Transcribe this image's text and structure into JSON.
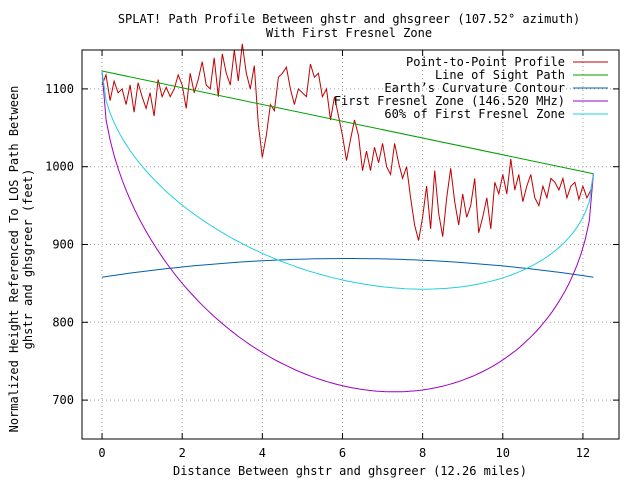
{
  "chart_data": {
    "type": "line",
    "title": "SPLAT! Path Profile Between ghstr and ghsgreer (107.52° azimuth)",
    "subtitle": "With First Fresnel Zone",
    "xlabel": "Distance Between ghstr and ghsgreer (12.26 miles)",
    "ylabel_line1": "Normalized Height Referenced To LOS Path Between",
    "ylabel_line2": "ghstr and ghsgreer (feet)",
    "xlim": [
      -0.5,
      12.9
    ],
    "ylim": [
      650,
      1150
    ],
    "x_ticks": [
      0,
      2,
      4,
      6,
      8,
      10,
      12
    ],
    "y_ticks": [
      700,
      800,
      900,
      1000,
      1100
    ],
    "x_tick_labels": [
      "0",
      "2",
      "4",
      "6",
      "8",
      "10",
      "12"
    ],
    "y_tick_labels": [
      "700",
      "800",
      "900",
      "1000",
      "1100"
    ],
    "grid": true,
    "legend_position": "top-right",
    "series": [
      {
        "name": "Point-to-Point Profile",
        "color": "#c00000",
        "x": [
          0,
          0.1,
          0.2,
          0.3,
          0.4,
          0.5,
          0.6,
          0.7,
          0.8,
          0.9,
          1.0,
          1.1,
          1.2,
          1.3,
          1.4,
          1.5,
          1.6,
          1.7,
          1.8,
          1.9,
          2.0,
          2.1,
          2.2,
          2.3,
          2.4,
          2.5,
          2.6,
          2.7,
          2.8,
          2.9,
          3.0,
          3.1,
          3.2,
          3.3,
          3.4,
          3.5,
          3.6,
          3.7,
          3.8,
          3.9,
          4.0,
          4.1,
          4.2,
          4.3,
          4.4,
          4.5,
          4.6,
          4.7,
          4.8,
          4.9,
          5.0,
          5.1,
          5.2,
          5.3,
          5.4,
          5.5,
          5.6,
          5.7,
          5.8,
          5.9,
          6.0,
          6.1,
          6.2,
          6.3,
          6.4,
          6.5,
          6.6,
          6.7,
          6.8,
          6.9,
          7.0,
          7.1,
          7.2,
          7.3,
          7.4,
          7.5,
          7.6,
          7.7,
          7.8,
          7.9,
          8.0,
          8.1,
          8.2,
          8.3,
          8.4,
          8.5,
          8.6,
          8.7,
          8.8,
          8.9,
          9.0,
          9.1,
          9.2,
          9.3,
          9.4,
          9.5,
          9.6,
          9.7,
          9.8,
          9.9,
          10.0,
          10.1,
          10.2,
          10.3,
          10.4,
          10.5,
          10.6,
          10.7,
          10.8,
          10.9,
          11.0,
          11.1,
          11.2,
          11.3,
          11.4,
          11.5,
          11.6,
          11.7,
          11.8,
          11.9,
          12.0,
          12.1,
          12.2,
          12.26
        ],
        "y": [
          1105,
          1118,
          1085,
          1110,
          1095,
          1100,
          1080,
          1105,
          1070,
          1108,
          1090,
          1075,
          1095,
          1065,
          1112,
          1090,
          1102,
          1090,
          1100,
          1118,
          1105,
          1075,
          1120,
          1095,
          1112,
          1135,
          1105,
          1100,
          1140,
          1090,
          1145,
          1120,
          1105,
          1150,
          1110,
          1158,
          1120,
          1100,
          1130,
          1055,
          1012,
          1040,
          1080,
          1072,
          1115,
          1120,
          1128,
          1100,
          1080,
          1100,
          1095,
          1090,
          1132,
          1115,
          1120,
          1090,
          1100,
          1060,
          1090,
          1065,
          1040,
          1008,
          1035,
          1060,
          1040,
          995,
          1020,
          995,
          1025,
          1005,
          1030,
          1000,
          990,
          1030,
          1005,
          985,
          1000,
          960,
          925,
          905,
          935,
          975,
          920,
          995,
          940,
          910,
          960,
          998,
          955,
          925,
          965,
          935,
          950,
          985,
          915,
          935,
          960,
          920,
          980,
          965,
          990,
          965,
          1010,
          970,
          990,
          955,
          975,
          990,
          960,
          950,
          975,
          960,
          985,
          980,
          970,
          985,
          960,
          975,
          980,
          958,
          975,
          960,
          970,
          990
        ]
      },
      {
        "name": "Line of Sight Path",
        "color": "#00a000",
        "x": [
          0,
          12.26
        ],
        "y": [
          1123,
          991
        ]
      },
      {
        "name": "Earth’s Curvature Contour",
        "color": "#0060ad",
        "x": [
          0,
          12.26
        ],
        "y": [
          858,
          858
        ],
        "curve": "earth",
        "peak": 882
      },
      {
        "name": "First Fresnel Zone (146.520 MHz)",
        "color": "#a000c0",
        "x": [
          0,
          12.26
        ],
        "y": [
          1123,
          991
        ],
        "fresnel_radius_mid": 340
      },
      {
        "name": "60% of First Fresnel Zone",
        "color": "#20d0e0",
        "x": [
          0,
          12.26
        ],
        "y": [
          1123,
          991
        ],
        "fresnel_radius_mid": 204
      }
    ]
  }
}
